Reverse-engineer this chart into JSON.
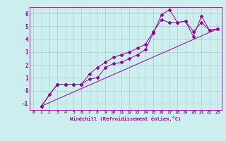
{
  "title": "",
  "xlabel": "Windchill (Refroidissement éolien,°C)",
  "ylabel": "",
  "background_color": "#cceeee",
  "line_color": "#990099",
  "xlim": [
    -0.5,
    23.5
  ],
  "ylim": [
    -1.5,
    6.5
  ],
  "xticks": [
    0,
    1,
    2,
    3,
    4,
    5,
    6,
    7,
    8,
    9,
    10,
    11,
    12,
    13,
    14,
    15,
    16,
    17,
    18,
    19,
    20,
    21,
    22,
    23
  ],
  "yticks": [
    -1,
    0,
    1,
    2,
    3,
    4,
    5,
    6
  ],
  "grid_color": "#aacccc",
  "series": [
    {
      "x": [
        1,
        2,
        3,
        4,
        5,
        6,
        7,
        8,
        9,
        10,
        11,
        12,
        13,
        14,
        15,
        16,
        17,
        18,
        19,
        20,
        21,
        22,
        23
      ],
      "y": [
        -1.2,
        -0.3,
        0.5,
        0.5,
        0.5,
        0.5,
        0.9,
        1.0,
        1.8,
        2.1,
        2.2,
        2.5,
        2.8,
        3.2,
        4.5,
        5.9,
        6.3,
        5.3,
        5.4,
        4.2,
        5.8,
        4.7,
        4.8
      ]
    },
    {
      "x": [
        1,
        3,
        4,
        5,
        6,
        7,
        8,
        9,
        10,
        11,
        12,
        13,
        14,
        15,
        16,
        17,
        18,
        19,
        20,
        21,
        22,
        23
      ],
      "y": [
        -1.2,
        0.5,
        0.5,
        0.5,
        0.5,
        1.3,
        1.8,
        2.2,
        2.6,
        2.8,
        3.0,
        3.3,
        3.6,
        4.6,
        5.5,
        5.3,
        5.3,
        5.4,
        4.6,
        5.3,
        4.7,
        4.8
      ]
    },
    {
      "x": [
        1,
        23
      ],
      "y": [
        -1.2,
        4.8
      ]
    }
  ]
}
